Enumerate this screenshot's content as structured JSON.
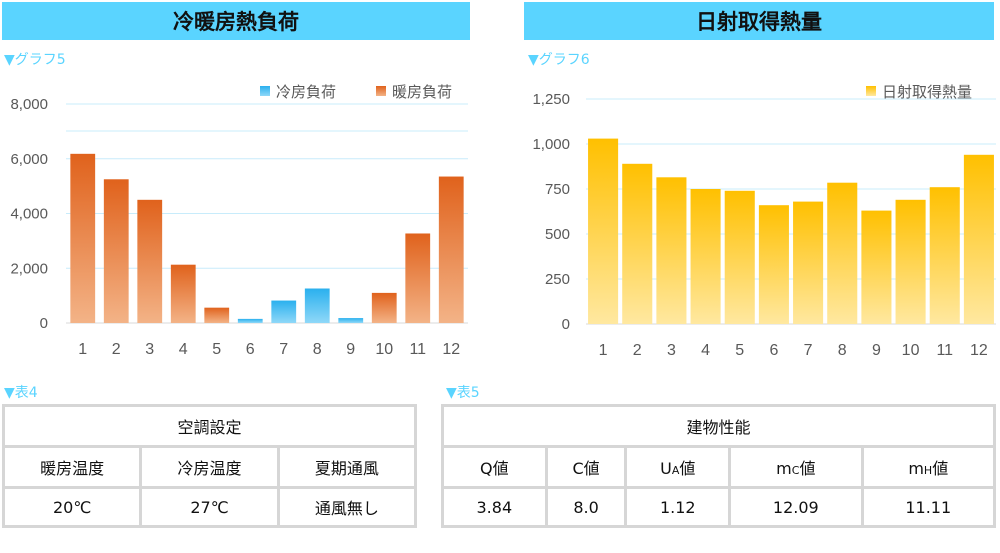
{
  "titles": {
    "left": "冷暖房熱負荷",
    "right": "日射取得熱量"
  },
  "captions": {
    "graph5": "▼グラフ5",
    "graph6": "▼グラフ6",
    "table4": "▼表4",
    "table5": "▼表5"
  },
  "colors": {
    "header": "#5ad4ff",
    "cooling": "#2ab0ee",
    "heating": "#e0621c",
    "solar": "#ffc000",
    "caption": "#5ad4ff"
  },
  "chart_data": [
    {
      "type": "bar",
      "categories": [
        "1",
        "2",
        "3",
        "4",
        "5",
        "6",
        "7",
        "8",
        "9",
        "10",
        "11",
        "12"
      ],
      "series": [
        {
          "name": "冷房負荷",
          "values": [
            0,
            0,
            0,
            0,
            0,
            150,
            820,
            1260,
            180,
            0,
            0,
            0
          ]
        },
        {
          "name": "暖房負荷",
          "values": [
            6180,
            5250,
            4500,
            2130,
            560,
            0,
            0,
            0,
            0,
            1100,
            3270,
            5350
          ]
        }
      ],
      "yticks": [
        "0",
        "2,000",
        "4,000",
        "6,000",
        "8,000"
      ],
      "ylim": [
        0,
        8000
      ],
      "legend": "top-right",
      "grid": true
    },
    {
      "type": "bar",
      "categories": [
        "1",
        "2",
        "3",
        "4",
        "5",
        "6",
        "7",
        "8",
        "9",
        "10",
        "11",
        "12"
      ],
      "series": [
        {
          "name": "日射取得熱量",
          "values": [
            1030,
            890,
            815,
            750,
            740,
            660,
            680,
            785,
            630,
            690,
            760,
            940
          ]
        }
      ],
      "yticks": [
        "0",
        "250",
        "500",
        "750",
        "1,000",
        "1,250"
      ],
      "ylim": [
        0,
        1250
      ],
      "legend": "top-right",
      "grid": true
    }
  ],
  "table4": {
    "title": "空調設定",
    "headers": [
      "暖房温度",
      "冷房温度",
      "夏期通風"
    ],
    "values": [
      "20℃",
      "27℃",
      "通風無し"
    ]
  },
  "table5": {
    "title": "建物性能",
    "headers": [
      {
        "main": "Q値",
        "sub": ""
      },
      {
        "main": "C値",
        "sub": ""
      },
      {
        "main": "U",
        "sub": "A",
        "tail": "値"
      },
      {
        "main": "m",
        "sub": "C",
        "tail": "値"
      },
      {
        "main": "m",
        "sub": "H",
        "tail": "値"
      }
    ],
    "values": [
      "3.84",
      "8.0",
      "1.12",
      "12.09",
      "11.11"
    ]
  }
}
